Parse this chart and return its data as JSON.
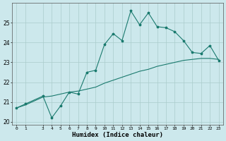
{
  "xlabel": "Humidex (Indice chaleur)",
  "background_color": "#cce8ec",
  "line_color": "#1a7a6e",
  "grid_color": "#aacccc",
  "x": [
    0,
    1,
    3,
    4,
    5,
    6,
    7,
    8,
    9,
    10,
    11,
    12,
    13,
    14,
    15,
    16,
    17,
    18,
    19,
    20,
    21,
    22,
    23
  ],
  "y_line1": [
    20.7,
    20.9,
    21.3,
    20.2,
    20.8,
    21.5,
    21.4,
    22.5,
    22.6,
    23.9,
    24.45,
    24.1,
    25.6,
    24.9,
    25.5,
    24.8,
    24.75,
    24.55,
    24.1,
    23.5,
    23.45,
    23.85,
    23.1
  ],
  "y_line2": [
    20.7,
    20.85,
    21.25,
    21.3,
    21.4,
    21.5,
    21.55,
    21.65,
    21.75,
    21.95,
    22.1,
    22.25,
    22.4,
    22.55,
    22.65,
    22.8,
    22.9,
    23.0,
    23.1,
    23.15,
    23.2,
    23.2,
    23.15
  ],
  "xlim": [
    -0.5,
    23.5
  ],
  "ylim": [
    19.85,
    26.0
  ],
  "yticks": [
    20,
    21,
    22,
    23,
    24,
    25
  ],
  "xticks": [
    0,
    1,
    3,
    4,
    5,
    6,
    7,
    8,
    9,
    10,
    11,
    12,
    13,
    14,
    15,
    16,
    17,
    18,
    19,
    20,
    21,
    22,
    23
  ]
}
